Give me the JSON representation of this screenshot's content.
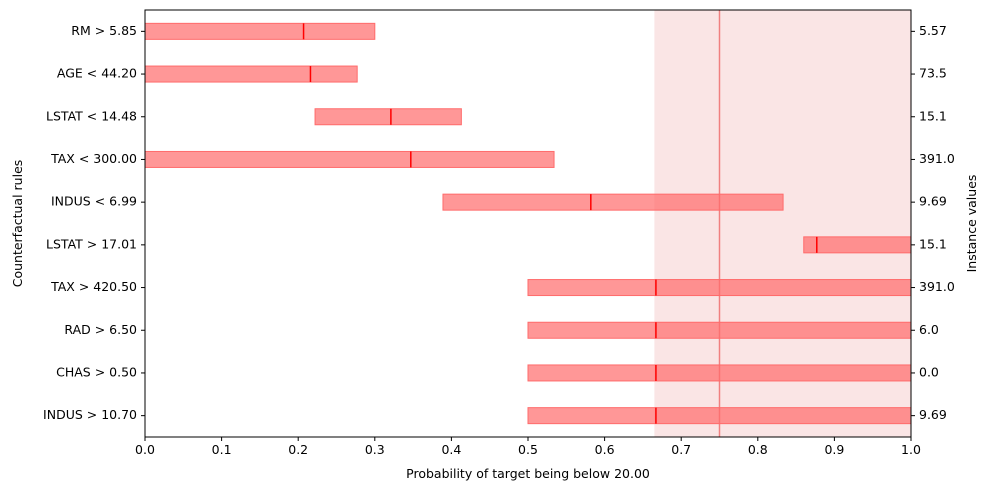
{
  "chart_data": {
    "type": "bar",
    "orientation": "horizontal-interval",
    "xlabel": "Probability of target being below 20.00",
    "ylabel": "Counterfactual rules",
    "y2label": "Instance values",
    "xlim": [
      0,
      1
    ],
    "xticks": [
      "0.0",
      "0.1",
      "0.2",
      "0.3",
      "0.4",
      "0.5",
      "0.6",
      "0.7",
      "0.8",
      "0.9",
      "1.0"
    ],
    "grid": false,
    "reference_band": [
      0.665,
      1.0
    ],
    "reference_line": 0.75,
    "colors": {
      "bar": "#ff6b6b",
      "marker": "#ff0000",
      "band": "#f5c6c6",
      "ref_line": "#f08080"
    },
    "rows": [
      {
        "rule": "RM > 5.85",
        "instance_value": "5.57",
        "low": 0.0,
        "high": 0.3,
        "point": 0.207
      },
      {
        "rule": "AGE < 44.20",
        "instance_value": "73.5",
        "low": 0.0,
        "high": 0.277,
        "point": 0.216
      },
      {
        "rule": "LSTAT < 14.48",
        "instance_value": "15.1",
        "low": 0.222,
        "high": 0.413,
        "point": 0.321
      },
      {
        "rule": "TAX < 300.00",
        "instance_value": "391.0",
        "low": 0.0,
        "high": 0.534,
        "point": 0.347
      },
      {
        "rule": "INDUS < 6.99",
        "instance_value": "9.69",
        "low": 0.389,
        "high": 0.833,
        "point": 0.582
      },
      {
        "rule": "LSTAT > 17.01",
        "instance_value": "15.1",
        "low": 0.86,
        "high": 1.0,
        "point": 0.877
      },
      {
        "rule": "TAX > 420.50",
        "instance_value": "391.0",
        "low": 0.5,
        "high": 1.0,
        "point": 0.667
      },
      {
        "rule": "RAD > 6.50",
        "instance_value": "6.0",
        "low": 0.5,
        "high": 1.0,
        "point": 0.667
      },
      {
        "rule": "CHAS > 0.50",
        "instance_value": "0.0",
        "low": 0.5,
        "high": 1.0,
        "point": 0.667
      },
      {
        "rule": "INDUS > 10.70",
        "instance_value": "9.69",
        "low": 0.5,
        "high": 1.0,
        "point": 0.667
      }
    ]
  }
}
